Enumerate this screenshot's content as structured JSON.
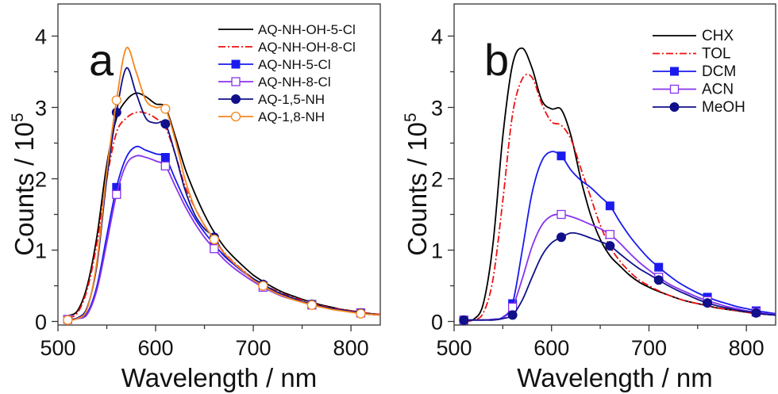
{
  "chart_data": [
    {
      "type": "line",
      "panel_label": "a",
      "xlabel": "Wavelength / nm",
      "ylabel": "Counts / 10^5",
      "ylabel_main": "Counts / 10",
      "ylabel_exp": "5",
      "xlim": [
        500,
        830
      ],
      "ylim": [
        -0.05,
        4.45
      ],
      "xticks": [
        500,
        600,
        700,
        800
      ],
      "yticks": [
        0,
        1,
        2,
        3,
        4
      ],
      "grid": false,
      "legend_position": "top-right",
      "series": [
        {
          "name": "AQ-NH-OH-5-Cl",
          "color": "#000000",
          "dash": "solid",
          "marker": "none",
          "x": [
            510,
            520,
            530,
            540,
            550,
            560,
            570,
            580,
            590,
            600,
            610,
            620,
            630,
            640,
            650,
            660,
            670,
            680,
            690,
            700,
            710,
            720,
            730,
            740,
            750,
            760,
            770,
            780,
            790,
            800,
            810,
            820,
            830
          ],
          "y": [
            0.08,
            0.15,
            0.5,
            1.2,
            2.2,
            2.85,
            3.1,
            3.2,
            3.15,
            3.05,
            3.0,
            2.6,
            2.15,
            1.8,
            1.5,
            1.25,
            1.05,
            0.9,
            0.77,
            0.65,
            0.56,
            0.48,
            0.41,
            0.36,
            0.31,
            0.27,
            0.23,
            0.2,
            0.17,
            0.15,
            0.13,
            0.11,
            0.1
          ]
        },
        {
          "name": "AQ-NH-OH-8-Cl",
          "color": "#ee1111",
          "dash": "dashdot",
          "marker": "none",
          "x": [
            510,
            520,
            530,
            540,
            550,
            560,
            570,
            580,
            590,
            600,
            610,
            620,
            630,
            640,
            650,
            660,
            670,
            680,
            690,
            700,
            710,
            720,
            730,
            740,
            750,
            760,
            770,
            780,
            790,
            800,
            810,
            820,
            830
          ],
          "y": [
            0.05,
            0.12,
            0.45,
            1.1,
            2.0,
            2.65,
            2.85,
            2.93,
            2.92,
            2.85,
            2.72,
            2.35,
            1.9,
            1.6,
            1.35,
            1.15,
            0.97,
            0.83,
            0.71,
            0.6,
            0.52,
            0.45,
            0.39,
            0.34,
            0.3,
            0.26,
            0.22,
            0.19,
            0.17,
            0.15,
            0.13,
            0.11,
            0.1
          ]
        },
        {
          "name": "AQ-NH-5-Cl",
          "color": "#1a1aee",
          "dash": "solid",
          "marker": "square-filled",
          "x": [
            510,
            520,
            530,
            540,
            550,
            560,
            570,
            580,
            590,
            600,
            610,
            620,
            630,
            640,
            650,
            660,
            670,
            680,
            690,
            700,
            710,
            720,
            730,
            740,
            750,
            760,
            770,
            780,
            790,
            800,
            810,
            820,
            830
          ],
          "y": [
            0.03,
            0.04,
            0.12,
            0.5,
            1.2,
            1.88,
            2.3,
            2.45,
            2.4,
            2.35,
            2.3,
            2.0,
            1.7,
            1.45,
            1.25,
            1.08,
            0.92,
            0.8,
            0.69,
            0.59,
            0.5,
            0.43,
            0.37,
            0.32,
            0.28,
            0.24,
            0.21,
            0.18,
            0.16,
            0.14,
            0.12,
            0.1,
            0.09
          ],
          "marker_x": [
            560,
            610,
            660,
            710,
            760,
            810
          ]
        },
        {
          "name": "AQ-NH-8-Cl",
          "color": "#8833ee",
          "dash": "solid",
          "marker": "square-open",
          "x": [
            510,
            520,
            530,
            540,
            550,
            560,
            570,
            580,
            590,
            600,
            610,
            620,
            630,
            640,
            650,
            660,
            670,
            680,
            690,
            700,
            710,
            720,
            730,
            740,
            750,
            760,
            770,
            780,
            790,
            800,
            810,
            820,
            830
          ],
          "y": [
            0.03,
            0.04,
            0.1,
            0.45,
            1.1,
            1.78,
            2.2,
            2.32,
            2.3,
            2.25,
            2.18,
            1.9,
            1.62,
            1.38,
            1.18,
            1.02,
            0.87,
            0.75,
            0.65,
            0.56,
            0.48,
            0.41,
            0.35,
            0.31,
            0.27,
            0.23,
            0.2,
            0.18,
            0.16,
            0.14,
            0.12,
            0.1,
            0.09
          ],
          "marker_x": [
            510,
            560,
            610,
            660,
            710,
            760,
            810
          ]
        },
        {
          "name": "AQ-1,5-NH",
          "color": "#10108a",
          "dash": "solid",
          "marker": "circle-filled",
          "x": [
            510,
            520,
            530,
            540,
            550,
            560,
            570,
            580,
            590,
            600,
            610,
            620,
            630,
            640,
            650,
            660,
            670,
            680,
            690,
            700,
            710,
            720,
            730,
            740,
            750,
            760,
            770,
            780,
            790,
            800,
            810,
            820,
            830
          ],
          "y": [
            0.03,
            0.05,
            0.2,
            0.8,
            2.0,
            2.93,
            3.55,
            3.2,
            2.85,
            2.78,
            2.77,
            2.35,
            1.85,
            1.5,
            1.3,
            1.18,
            0.95,
            0.82,
            0.7,
            0.6,
            0.52,
            0.44,
            0.38,
            0.33,
            0.28,
            0.24,
            0.21,
            0.18,
            0.16,
            0.14,
            0.12,
            0.1,
            0.09
          ],
          "marker_x": [
            560,
            610,
            660,
            710,
            760,
            810
          ]
        },
        {
          "name": "AQ-1,8-NH",
          "color": "#f5861f",
          "dash": "solid",
          "marker": "circle-open",
          "x": [
            510,
            520,
            530,
            540,
            550,
            560,
            570,
            580,
            590,
            600,
            610,
            620,
            630,
            640,
            650,
            660,
            670,
            680,
            690,
            700,
            710,
            720,
            730,
            740,
            750,
            760,
            770,
            780,
            790,
            800,
            810,
            820,
            830
          ],
          "y": [
            0.02,
            0.04,
            0.18,
            0.85,
            2.1,
            3.1,
            3.83,
            3.5,
            3.1,
            3.0,
            2.98,
            2.55,
            2.0,
            1.6,
            1.35,
            1.15,
            0.96,
            0.82,
            0.7,
            0.58,
            0.5,
            0.42,
            0.36,
            0.31,
            0.27,
            0.23,
            0.2,
            0.17,
            0.15,
            0.13,
            0.11,
            0.1,
            0.09
          ],
          "marker_x": [
            510,
            560,
            610,
            660,
            710,
            760,
            810
          ]
        }
      ]
    },
    {
      "type": "line",
      "panel_label": "b",
      "xlabel": "Wavelength / nm",
      "ylabel": "Counts / 10^5",
      "ylabel_main": "Counts / 10",
      "ylabel_exp": "5",
      "xlim": [
        500,
        830
      ],
      "ylim": [
        -0.05,
        4.45
      ],
      "xticks": [
        500,
        600,
        700,
        800
      ],
      "yticks": [
        0,
        1,
        2,
        3,
        4
      ],
      "grid": false,
      "legend_position": "top-right",
      "series": [
        {
          "name": "CHX",
          "color": "#000000",
          "dash": "solid",
          "marker": "none",
          "x": [
            510,
            520,
            530,
            540,
            550,
            560,
            570,
            580,
            590,
            600,
            610,
            620,
            630,
            640,
            650,
            660,
            670,
            680,
            690,
            700,
            710,
            720,
            730,
            740,
            750,
            760,
            770,
            780,
            790,
            800,
            810,
            820,
            830
          ],
          "y": [
            0.01,
            0.03,
            0.25,
            1.1,
            2.6,
            3.6,
            3.83,
            3.55,
            3.1,
            2.98,
            2.97,
            2.6,
            2.0,
            1.5,
            1.15,
            0.92,
            0.78,
            0.65,
            0.55,
            0.48,
            0.42,
            0.37,
            0.32,
            0.28,
            0.25,
            0.22,
            0.19,
            0.17,
            0.15,
            0.13,
            0.11,
            0.1,
            0.09
          ]
        },
        {
          "name": "TOL",
          "color": "#ee1111",
          "dash": "dashdot",
          "marker": "none",
          "x": [
            510,
            520,
            530,
            540,
            550,
            560,
            570,
            580,
            590,
            600,
            610,
            620,
            630,
            640,
            650,
            660,
            670,
            680,
            690,
            700,
            710,
            720,
            730,
            740,
            750,
            760,
            770,
            780,
            790,
            800,
            810,
            820,
            830
          ],
          "y": [
            0.01,
            0.02,
            0.12,
            0.6,
            1.7,
            2.9,
            3.4,
            3.42,
            3.05,
            2.8,
            2.75,
            2.55,
            2.15,
            1.75,
            1.35,
            1.05,
            0.85,
            0.7,
            0.58,
            0.5,
            0.43,
            0.37,
            0.32,
            0.28,
            0.25,
            0.22,
            0.19,
            0.17,
            0.15,
            0.13,
            0.11,
            0.1,
            0.09
          ]
        },
        {
          "name": "DCM",
          "color": "#1a1aee",
          "dash": "solid",
          "marker": "square-filled",
          "x": [
            510,
            520,
            530,
            540,
            550,
            560,
            570,
            580,
            590,
            600,
            610,
            620,
            630,
            640,
            650,
            660,
            670,
            680,
            690,
            700,
            710,
            720,
            730,
            740,
            750,
            760,
            770,
            780,
            790,
            800,
            810,
            820,
            830
          ],
          "y": [
            0.02,
            0.02,
            0.02,
            0.03,
            0.06,
            0.25,
            1.0,
            1.8,
            2.25,
            2.38,
            2.32,
            2.12,
            1.98,
            1.88,
            1.75,
            1.62,
            1.4,
            1.2,
            1.03,
            0.88,
            0.76,
            0.65,
            0.55,
            0.47,
            0.4,
            0.34,
            0.29,
            0.25,
            0.21,
            0.18,
            0.15,
            0.13,
            0.11
          ],
          "marker_x": [
            510,
            560,
            610,
            660,
            710,
            760,
            810
          ]
        },
        {
          "name": "ACN",
          "color": "#8833ee",
          "dash": "solid",
          "marker": "square-open",
          "x": [
            510,
            520,
            530,
            540,
            550,
            560,
            570,
            580,
            590,
            600,
            610,
            620,
            630,
            640,
            650,
            660,
            670,
            680,
            690,
            700,
            710,
            720,
            730,
            740,
            750,
            760,
            770,
            780,
            790,
            800,
            810,
            820,
            830
          ],
          "y": [
            0.02,
            0.02,
            0.02,
            0.03,
            0.05,
            0.2,
            0.6,
            1.05,
            1.35,
            1.48,
            1.5,
            1.47,
            1.42,
            1.36,
            1.3,
            1.22,
            1.1,
            0.96,
            0.83,
            0.72,
            0.62,
            0.53,
            0.46,
            0.4,
            0.34,
            0.29,
            0.25,
            0.21,
            0.18,
            0.15,
            0.13,
            0.11,
            0.1
          ],
          "marker_x": [
            510,
            560,
            610,
            660,
            710,
            760,
            810
          ]
        },
        {
          "name": "MeOH",
          "color": "#10108a",
          "dash": "solid",
          "marker": "circle-filled",
          "x": [
            510,
            520,
            530,
            540,
            550,
            560,
            570,
            580,
            590,
            600,
            610,
            620,
            630,
            640,
            650,
            660,
            670,
            680,
            690,
            700,
            710,
            720,
            730,
            740,
            750,
            760,
            770,
            780,
            790,
            800,
            810,
            820,
            830
          ],
          "y": [
            0.02,
            0.02,
            0.02,
            0.02,
            0.04,
            0.09,
            0.3,
            0.62,
            0.92,
            1.1,
            1.18,
            1.24,
            1.22,
            1.17,
            1.12,
            1.06,
            0.95,
            0.84,
            0.74,
            0.66,
            0.58,
            0.5,
            0.43,
            0.37,
            0.31,
            0.26,
            0.22,
            0.19,
            0.16,
            0.14,
            0.12,
            0.1,
            0.09
          ],
          "marker_x": [
            510,
            560,
            610,
            660,
            710,
            760,
            810
          ]
        }
      ]
    }
  ]
}
